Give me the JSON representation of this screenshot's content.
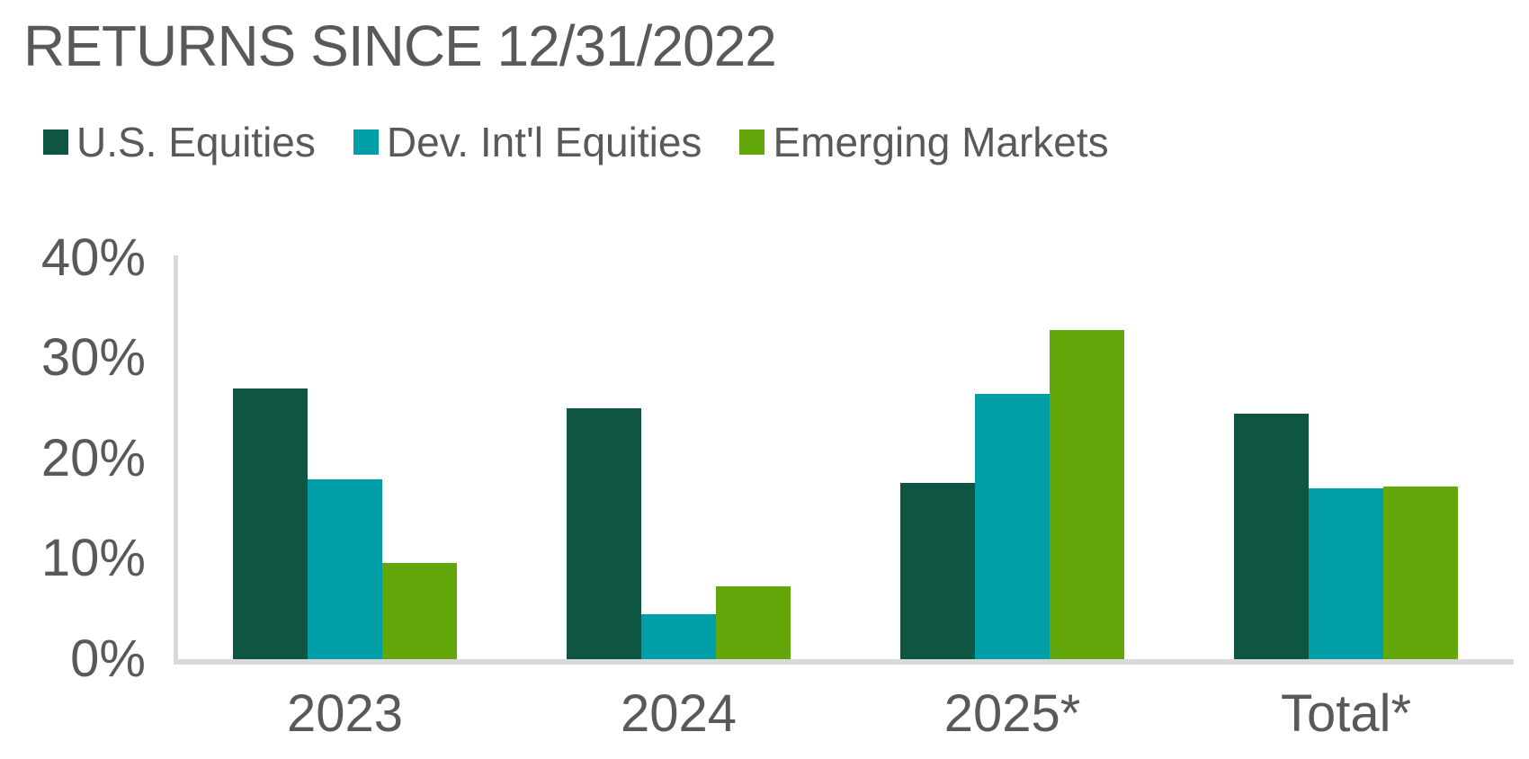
{
  "title": "RETURNS SINCE 12/31/2022",
  "colors": {
    "us_equities": "#0E5543",
    "dev_intl_equities": "#009FA8",
    "emerging_markets": "#64A70B",
    "text_gray": "#595959",
    "axis_line": "#D9D9D9",
    "background": "#FFFFFF"
  },
  "chart_data": {
    "type": "bar",
    "title": "RETURNS SINCE 12/31/2022",
    "categories": [
      "2023",
      "2024",
      "2025*",
      "Total*"
    ],
    "series": [
      {
        "name": "U.S. Equities",
        "color": "#0E5543",
        "values": [
          27.0,
          25.0,
          17.6,
          24.5
        ]
      },
      {
        "name": "Dev. Int'l Equities",
        "color": "#009FA8",
        "values": [
          17.9,
          4.5,
          26.5,
          17.0
        ]
      },
      {
        "name": "Emerging Markets",
        "color": "#64A70B",
        "values": [
          9.6,
          7.3,
          32.8,
          17.2
        ]
      }
    ],
    "xlabel": "",
    "ylabel": "",
    "yticks": [
      "0%",
      "10%",
      "20%",
      "30%",
      "40%"
    ],
    "ylim": [
      0,
      40
    ],
    "grid": false,
    "legend_position": "top-left"
  }
}
